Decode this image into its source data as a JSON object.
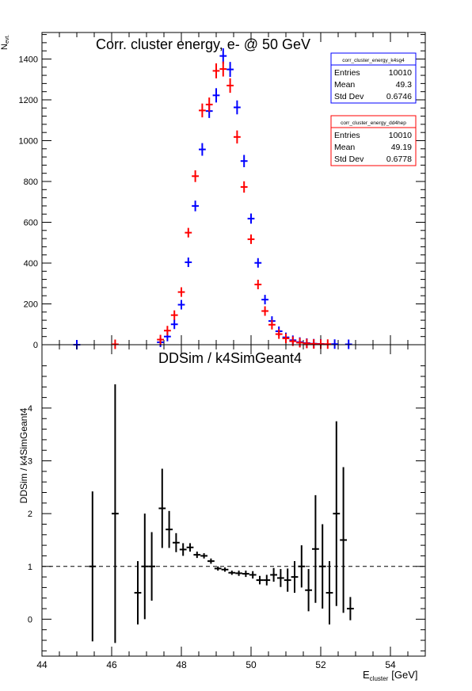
{
  "chart_data": [
    {
      "type": "scatter",
      "title": "Corr. cluster energy,  e- @ 50 GeV",
      "ylabel_main": "N",
      "ylabel_sub": "evt.",
      "xlim": [
        44,
        55
      ],
      "ylim": [
        0,
        1530
      ],
      "yticks": [
        0,
        200,
        400,
        600,
        800,
        1000,
        1200,
        1400
      ],
      "series": [
        {
          "name": "corr_cluster_energy_k4sg4",
          "color": "#0000ff",
          "x": [
            45.0,
            47.4,
            47.6,
            47.8,
            48.0,
            48.2,
            48.4,
            48.6,
            48.8,
            49.0,
            49.2,
            49.4,
            49.6,
            49.8,
            50.0,
            50.2,
            50.4,
            50.6,
            50.8,
            51.0,
            51.2,
            51.4,
            51.6,
            51.8,
            52.0,
            52.4,
            52.8
          ],
          "y": [
            0,
            12,
            40,
            100,
            196,
            404,
            680,
            957,
            1145,
            1222,
            1415,
            1349,
            1163,
            900,
            618,
            401,
            221,
            116,
            66,
            36,
            22,
            13,
            8,
            5,
            4,
            3,
            2
          ]
        },
        {
          "name": "corr_cluster_energy_dd4hep",
          "color": "#ff0000",
          "x": [
            46.1,
            47.4,
            47.6,
            47.8,
            48.0,
            48.2,
            48.4,
            48.6,
            48.8,
            49.0,
            49.2,
            49.4,
            49.6,
            49.8,
            50.0,
            50.2,
            50.4,
            50.6,
            50.8,
            51.0,
            51.2,
            51.4,
            51.6,
            51.8,
            52.0,
            52.2
          ],
          "y": [
            2,
            25,
            69,
            145,
            258,
            549,
            826,
            1148,
            1177,
            1342,
            1351,
            1270,
            1018,
            773,
            517,
            295,
            165,
            98,
            52,
            31,
            17,
            10,
            6,
            4,
            3,
            3
          ]
        }
      ],
      "stats_boxes": [
        {
          "title": "corr_cluster_energy_k4sg4",
          "color": "#0000ff",
          "rows": [
            {
              "label": "Entries",
              "value": "10010"
            },
            {
              "label": "Mean",
              "value": "49.3"
            },
            {
              "label": "Std Dev",
              "value": "0.6746"
            }
          ]
        },
        {
          "title": "corr_cluster_energy_dd4hep",
          "color": "#ff0000",
          "rows": [
            {
              "label": "Entries",
              "value": "10010"
            },
            {
              "label": "Mean",
              "value": "49.19"
            },
            {
              "label": "Std Dev",
              "value": "0.6778"
            }
          ]
        }
      ]
    },
    {
      "type": "scatter",
      "title": "DDSim / k4SimGeant4",
      "ylabel": "DDSim / k4SimGeant4",
      "xlabel_main": "E",
      "xlabel_sub": "cluster",
      "xlabel_unit": "[GeV]",
      "xlim": [
        44,
        55
      ],
      "ylim": [
        -0.7,
        5.2
      ],
      "xticks": [
        44,
        46,
        48,
        50,
        52,
        54
      ],
      "yticks": [
        0,
        1,
        2,
        3,
        4
      ],
      "reference_line": 1,
      "series": [
        {
          "name": "ratio",
          "color": "#000000",
          "points": [
            {
              "x": 45.45,
              "y": 1.0,
              "err": 1.42
            },
            {
              "x": 46.1,
              "y": 2.0,
              "err": 2.45
            },
            {
              "x": 46.75,
              "y": 0.5,
              "err": 0.6
            },
            {
              "x": 46.95,
              "y": 1.0,
              "err": 1.0
            },
            {
              "x": 47.15,
              "y": 1.0,
              "err": 0.65
            },
            {
              "x": 47.45,
              "y": 2.1,
              "err": 0.75
            },
            {
              "x": 47.65,
              "y": 1.7,
              "err": 0.35
            },
            {
              "x": 47.85,
              "y": 1.45,
              "err": 0.18
            },
            {
              "x": 48.05,
              "y": 1.32,
              "err": 0.12
            },
            {
              "x": 48.25,
              "y": 1.36,
              "err": 0.08
            },
            {
              "x": 48.45,
              "y": 1.22,
              "err": 0.06
            },
            {
              "x": 48.65,
              "y": 1.2,
              "err": 0.05
            },
            {
              "x": 48.85,
              "y": 1.1,
              "err": 0.05
            },
            {
              "x": 49.05,
              "y": 0.96,
              "err": 0.04
            },
            {
              "x": 49.25,
              "y": 0.94,
              "err": 0.04
            },
            {
              "x": 49.45,
              "y": 0.88,
              "err": 0.04
            },
            {
              "x": 49.65,
              "y": 0.87,
              "err": 0.05
            },
            {
              "x": 49.85,
              "y": 0.86,
              "err": 0.06
            },
            {
              "x": 50.05,
              "y": 0.84,
              "err": 0.07
            },
            {
              "x": 50.25,
              "y": 0.74,
              "err": 0.08
            },
            {
              "x": 50.45,
              "y": 0.74,
              "err": 0.1
            },
            {
              "x": 50.65,
              "y": 0.84,
              "err": 0.13
            },
            {
              "x": 50.85,
              "y": 0.78,
              "err": 0.17
            },
            {
              "x": 51.05,
              "y": 0.74,
              "err": 0.22
            },
            {
              "x": 51.25,
              "y": 0.8,
              "err": 0.3
            },
            {
              "x": 51.45,
              "y": 1.0,
              "err": 0.4
            },
            {
              "x": 51.65,
              "y": 0.55,
              "err": 0.4
            },
            {
              "x": 51.85,
              "y": 1.33,
              "err": 1.02
            },
            {
              "x": 52.05,
              "y": 1.0,
              "err": 0.8
            },
            {
              "x": 52.25,
              "y": 0.5,
              "err": 0.6
            },
            {
              "x": 52.45,
              "y": 2.0,
              "err": 1.75
            },
            {
              "x": 52.65,
              "y": 1.5,
              "err": 1.38
            },
            {
              "x": 52.85,
              "y": 0.2,
              "err": 0.22
            }
          ]
        }
      ]
    }
  ]
}
